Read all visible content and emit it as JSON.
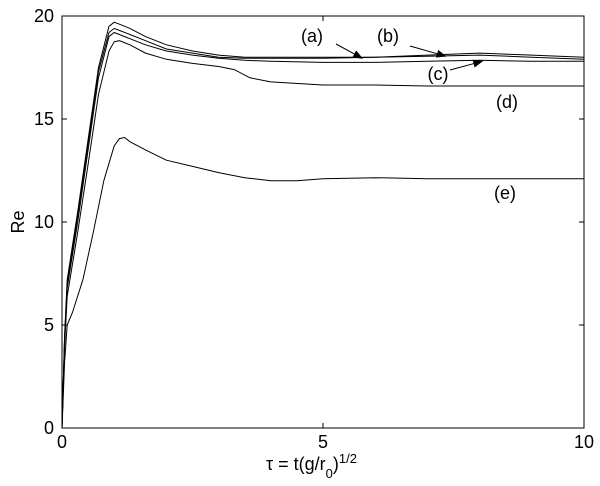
{
  "chart_data": {
    "type": "line",
    "title": "",
    "xlabel": "τ = t(g/r₀)^1/2",
    "ylabel": "Re",
    "xlim": [
      0,
      10
    ],
    "ylim": [
      0,
      20
    ],
    "xticks": [
      0,
      5,
      10
    ],
    "yticks": [
      0,
      5,
      10,
      15,
      20
    ],
    "grid": false,
    "legend": "none",
    "line_color": "#000000",
    "series": [
      {
        "name": "(a)",
        "x": [
          0,
          0.05,
          0.1,
          0.3,
          0.5,
          0.7,
          0.9,
          1.0,
          1.1,
          1.3,
          1.6,
          2.0,
          2.5,
          3.0,
          3.5,
          4.0,
          5.0,
          6.0,
          7.0,
          8.0,
          9.0,
          10.0
        ],
        "y": [
          0,
          4.5,
          7.2,
          10.5,
          14.0,
          17.5,
          19.5,
          19.7,
          19.6,
          19.4,
          19.0,
          18.6,
          18.3,
          18.1,
          18.0,
          18.0,
          18.0,
          18.0,
          18.1,
          18.2,
          18.1,
          18.0
        ]
      },
      {
        "name": "(b)",
        "x": [
          0,
          0.05,
          0.1,
          0.3,
          0.5,
          0.7,
          0.9,
          1.0,
          1.1,
          1.3,
          1.6,
          2.0,
          2.5,
          3.0,
          3.5,
          4.0,
          5.0,
          6.0,
          7.0,
          8.0,
          9.0,
          10.0
        ],
        "y": [
          0,
          4.4,
          7.0,
          10.3,
          13.8,
          17.3,
          19.2,
          19.4,
          19.3,
          19.1,
          18.8,
          18.4,
          18.2,
          18.0,
          17.95,
          17.95,
          17.95,
          18.0,
          18.05,
          18.1,
          18.0,
          17.9
        ]
      },
      {
        "name": "(c)",
        "x": [
          0,
          0.05,
          0.1,
          0.3,
          0.5,
          0.7,
          0.9,
          1.0,
          1.1,
          1.3,
          1.6,
          2.0,
          2.5,
          3.0,
          3.5,
          4.0,
          5.0,
          6.0,
          7.0,
          8.0,
          9.0,
          10.0
        ],
        "y": [
          0,
          4.3,
          6.8,
          10.0,
          13.5,
          17.0,
          19.0,
          19.2,
          19.1,
          18.9,
          18.6,
          18.3,
          18.1,
          17.95,
          17.85,
          17.8,
          17.75,
          17.75,
          17.8,
          17.85,
          17.8,
          17.8
        ]
      },
      {
        "name": "(d)",
        "x": [
          0,
          0.05,
          0.1,
          0.3,
          0.5,
          0.7,
          0.9,
          1.0,
          1.1,
          1.3,
          1.6,
          2.0,
          2.5,
          3.0,
          3.3,
          3.6,
          4.0,
          5.0,
          6.0,
          7.0,
          8.0,
          9.0,
          10.0
        ],
        "y": [
          0,
          4.0,
          6.4,
          9.5,
          12.8,
          16.2,
          18.3,
          18.75,
          18.8,
          18.6,
          18.2,
          17.9,
          17.7,
          17.55,
          17.4,
          17.0,
          16.8,
          16.65,
          16.65,
          16.6,
          16.6,
          16.6,
          16.6
        ]
      },
      {
        "name": "(e)",
        "x": [
          0,
          0.05,
          0.1,
          0.2,
          0.4,
          0.6,
          0.8,
          1.0,
          1.1,
          1.2,
          1.3,
          1.6,
          2.0,
          2.5,
          3.0,
          3.5,
          4.0,
          4.5,
          5.0,
          6.0,
          7.0,
          8.0,
          9.0,
          10.0
        ],
        "y": [
          0,
          3.2,
          5.0,
          5.6,
          7.2,
          9.5,
          12.0,
          13.7,
          14.05,
          14.1,
          13.9,
          13.5,
          13.0,
          12.7,
          12.4,
          12.15,
          12.0,
          12.0,
          12.1,
          12.15,
          12.1,
          12.1,
          12.1,
          12.1
        ]
      }
    ],
    "annotations": [
      {
        "label": "(a)",
        "arrow_to": [
          5.75,
          17.95
        ]
      },
      {
        "label": "(b)",
        "arrow_to": [
          7.35,
          18.05
        ]
      },
      {
        "label": "(c)",
        "arrow_to": [
          8.05,
          17.8
        ]
      },
      {
        "label": "(d)",
        "arrow_to": null
      },
      {
        "label": "(e)",
        "arrow_to": null
      }
    ]
  }
}
